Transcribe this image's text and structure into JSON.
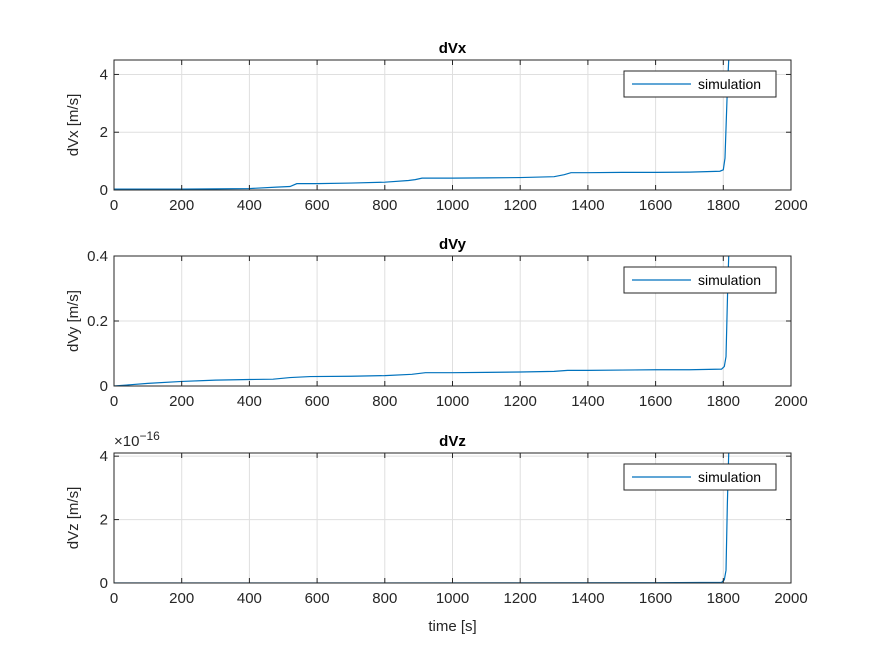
{
  "chart_data": [
    {
      "type": "line",
      "title": "dVx",
      "xlabel": "",
      "ylabel": "dVx [m/s]",
      "xlim": [
        0,
        2000
      ],
      "ylim": [
        0,
        4.5
      ],
      "xticks": [
        0,
        200,
        400,
        600,
        800,
        1000,
        1200,
        1400,
        1600,
        1800,
        2000
      ],
      "yticks": [
        0,
        2,
        4
      ],
      "ytick_labels": [
        "0",
        "2",
        "4"
      ],
      "exponent_label": "",
      "grid": true,
      "legend_position": "top-right",
      "series": [
        {
          "name": "simulation",
          "color": "#0072BD",
          "x": [
            0,
            100,
            200,
            300,
            400,
            480,
            520,
            540,
            600,
            700,
            800,
            870,
            890,
            910,
            1000,
            1100,
            1200,
            1300,
            1330,
            1350,
            1400,
            1500,
            1600,
            1700,
            1790,
            1800,
            1805,
            1812,
            1816
          ],
          "y": [
            0.03,
            0.03,
            0.03,
            0.04,
            0.05,
            0.1,
            0.12,
            0.22,
            0.22,
            0.24,
            0.27,
            0.33,
            0.36,
            0.41,
            0.41,
            0.42,
            0.43,
            0.46,
            0.53,
            0.6,
            0.6,
            0.61,
            0.61,
            0.62,
            0.65,
            0.7,
            1.1,
            3.5,
            4.5
          ]
        }
      ]
    },
    {
      "type": "line",
      "title": "dVy",
      "xlabel": "",
      "ylabel": "dVy [m/s]",
      "xlim": [
        0,
        2000
      ],
      "ylim": [
        0,
        0.4
      ],
      "xticks": [
        0,
        200,
        400,
        600,
        800,
        1000,
        1200,
        1400,
        1600,
        1800,
        2000
      ],
      "yticks": [
        0,
        0.2,
        0.4
      ],
      "ytick_labels": [
        "0",
        "0.2",
        "0.4"
      ],
      "exponent_label": "",
      "grid": true,
      "legend_position": "top-right",
      "series": [
        {
          "name": "simulation",
          "color": "#0072BD",
          "x": [
            0,
            50,
            100,
            200,
            300,
            400,
            470,
            520,
            580,
            700,
            800,
            880,
            920,
            1000,
            1100,
            1200,
            1300,
            1340,
            1400,
            1500,
            1600,
            1700,
            1795,
            1803,
            1808,
            1813,
            1816
          ],
          "y": [
            0.0,
            0.004,
            0.008,
            0.014,
            0.018,
            0.02,
            0.021,
            0.026,
            0.029,
            0.03,
            0.032,
            0.036,
            0.041,
            0.041,
            0.042,
            0.043,
            0.045,
            0.048,
            0.048,
            0.049,
            0.05,
            0.05,
            0.052,
            0.06,
            0.09,
            0.3,
            0.4
          ]
        }
      ]
    },
    {
      "type": "line",
      "title": "dVz",
      "xlabel": "time [s]",
      "ylabel": "dVz [m/s]",
      "xlim": [
        0,
        2000
      ],
      "ylim": [
        0,
        4.1
      ],
      "xticks": [
        0,
        200,
        400,
        600,
        800,
        1000,
        1200,
        1400,
        1600,
        1800,
        2000
      ],
      "yticks": [
        0,
        2,
        4
      ],
      "ytick_labels": [
        "0",
        "2",
        "4"
      ],
      "exponent_label": "×10",
      "exponent_power": "−16",
      "grid": true,
      "legend_position": "top-right",
      "series": [
        {
          "name": "simulation",
          "color": "#0072BD",
          "x": [
            0,
            400,
            800,
            1200,
            1600,
            1795,
            1803,
            1808,
            1812,
            1816
          ],
          "y": [
            0.0,
            0.0,
            0.0,
            0.005,
            0.01,
            0.02,
            0.1,
            0.4,
            2.5,
            4.1
          ]
        }
      ]
    }
  ]
}
